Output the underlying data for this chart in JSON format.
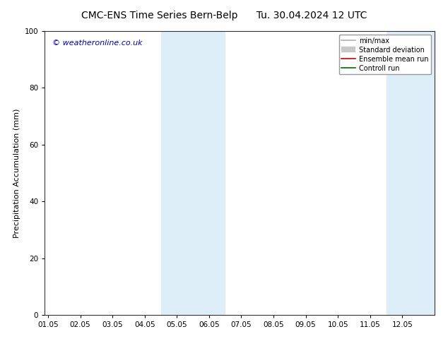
{
  "title": "CMC-ENS Time Series Bern-Belp",
  "title2": "Tu. 30.04.2024 12 UTC",
  "ylabel": "Precipitation Accumulation (mm)",
  "watermark": "© weatheronline.co.uk",
  "watermark_color": "#0000cc",
  "ylim": [
    0,
    100
  ],
  "yticks": [
    0,
    20,
    40,
    60,
    80,
    100
  ],
  "xtick_labels": [
    "01.05",
    "02.05",
    "03.05",
    "04.05",
    "05.05",
    "06.05",
    "07.05",
    "08.05",
    "09.05",
    "10.05",
    "11.05",
    "12.05"
  ],
  "xtick_positions": [
    0,
    1,
    2,
    3,
    4,
    5,
    6,
    7,
    8,
    9,
    10,
    11
  ],
  "xlim": [
    -0.1,
    12.0
  ],
  "shaded_bands": [
    {
      "xmin": 3.5,
      "xmax": 4.5,
      "color": "#ddeef8"
    },
    {
      "xmin": 4.5,
      "xmax": 5.5,
      "color": "#ddeef8"
    },
    {
      "xmin": 10.5,
      "xmax": 11.5,
      "color": "#ddeef8"
    },
    {
      "xmin": 11.5,
      "xmax": 12.5,
      "color": "#ddeef8"
    }
  ],
  "background_color": "#ffffff",
  "plot_bg_color": "#ffffff",
  "legend_entries": [
    {
      "label": "min/max",
      "color": "#b0b0b0",
      "lw": 1.2
    },
    {
      "label": "Standard deviation",
      "color": "#c8c8c8",
      "lw": 6
    },
    {
      "label": "Ensemble mean run",
      "color": "#cc0000",
      "lw": 1.2
    },
    {
      "label": "Controll run",
      "color": "#006600",
      "lw": 1.2
    }
  ],
  "title_fontsize": 10,
  "ylabel_fontsize": 8,
  "tick_fontsize": 7.5,
  "legend_fontsize": 7,
  "watermark_fontsize": 8
}
